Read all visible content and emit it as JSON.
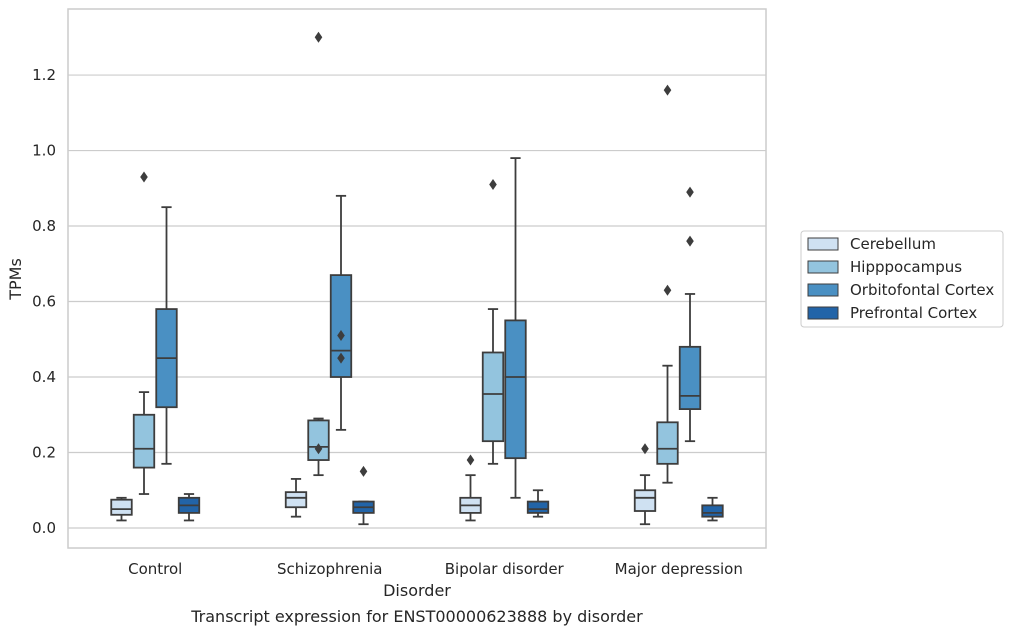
{
  "chart_data": {
    "type": "box",
    "title": "",
    "caption": "Transcript expression for ENST00000623888 by disorder",
    "xlabel": "Disorder",
    "ylabel": "TPMs",
    "ylim": [
      -0.053,
      1.375
    ],
    "yticks": [
      "0.0",
      "0.2",
      "0.4",
      "0.6",
      "0.8",
      "1.0",
      "1.2"
    ],
    "grid": true,
    "legend_position": "right",
    "categories": [
      "Control",
      "Schizophrenia",
      "Bipolar disorder",
      "Major depression"
    ],
    "series": [
      {
        "name": "Cerebellum",
        "color": "#cfe1f2",
        "boxes": [
          {
            "whisker_low": 0.02,
            "q1": 0.035,
            "median": 0.05,
            "q3": 0.075,
            "whisker_high": 0.08,
            "outliers": []
          },
          {
            "whisker_low": 0.03,
            "q1": 0.055,
            "median": 0.08,
            "q3": 0.095,
            "whisker_high": 0.13,
            "outliers": []
          },
          {
            "whisker_low": 0.02,
            "q1": 0.04,
            "median": 0.06,
            "q3": 0.08,
            "whisker_high": 0.14,
            "outliers": [
              0.18
            ]
          },
          {
            "whisker_low": 0.01,
            "q1": 0.045,
            "median": 0.08,
            "q3": 0.1,
            "whisker_high": 0.14,
            "outliers": [
              0.21
            ]
          }
        ]
      },
      {
        "name": "Hipppocampus",
        "color": "#93c4de",
        "boxes": [
          {
            "whisker_low": 0.09,
            "q1": 0.16,
            "median": 0.21,
            "q3": 0.3,
            "whisker_high": 0.36,
            "outliers": [
              0.93
            ]
          },
          {
            "whisker_low": 0.14,
            "q1": 0.18,
            "median": 0.215,
            "q3": 0.285,
            "whisker_high": 0.29,
            "outliers": [
              0.21,
              1.3
            ]
          },
          {
            "whisker_low": 0.17,
            "q1": 0.23,
            "median": 0.355,
            "q3": 0.465,
            "whisker_high": 0.58,
            "outliers": [
              0.91
            ]
          },
          {
            "whisker_low": 0.12,
            "q1": 0.17,
            "median": 0.21,
            "q3": 0.28,
            "whisker_high": 0.43,
            "outliers": [
              0.63,
              1.16
            ]
          }
        ]
      },
      {
        "name": "Orbitofontal Cortex",
        "color": "#4a90c3",
        "boxes": [
          {
            "whisker_low": 0.17,
            "q1": 0.32,
            "median": 0.45,
            "q3": 0.58,
            "whisker_high": 0.85,
            "outliers": []
          },
          {
            "whisker_low": 0.26,
            "q1": 0.4,
            "median": 0.47,
            "q3": 0.67,
            "whisker_high": 0.88,
            "outliers": [
              0.45,
              0.51
            ]
          },
          {
            "whisker_low": 0.08,
            "q1": 0.185,
            "median": 0.4,
            "q3": 0.55,
            "whisker_high": 0.98,
            "outliers": []
          },
          {
            "whisker_low": 0.23,
            "q1": 0.315,
            "median": 0.35,
            "q3": 0.48,
            "whisker_high": 0.62,
            "outliers": [
              0.76,
              0.89
            ]
          }
        ]
      },
      {
        "name": "Prefrontal Cortex",
        "color": "#2264a8",
        "boxes": [
          {
            "whisker_low": 0.02,
            "q1": 0.04,
            "median": 0.06,
            "q3": 0.08,
            "whisker_high": 0.09,
            "outliers": []
          },
          {
            "whisker_low": 0.01,
            "q1": 0.04,
            "median": 0.055,
            "q3": 0.07,
            "whisker_high": 0.07,
            "outliers": [
              0.15
            ]
          },
          {
            "whisker_low": 0.03,
            "q1": 0.04,
            "median": 0.05,
            "q3": 0.07,
            "whisker_high": 0.1,
            "outliers": []
          },
          {
            "whisker_low": 0.02,
            "q1": 0.03,
            "median": 0.04,
            "q3": 0.06,
            "whisker_high": 0.08,
            "outliers": []
          }
        ]
      }
    ]
  }
}
